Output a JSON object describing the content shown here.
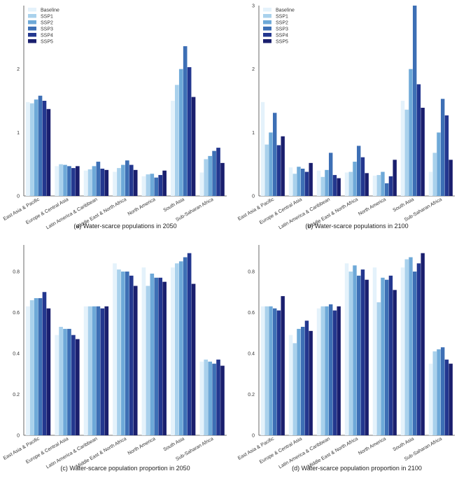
{
  "colors": [
    "#e4f2fb",
    "#a9d1ec",
    "#6ea9d8",
    "#3d6fb5",
    "#23378f",
    "#1a1f6e"
  ],
  "chart_data": [
    {
      "type": "bar",
      "caption": "(a) Water-scarce populations in 2050",
      "categories": [
        "East Asia & Pacific",
        "Europe & Central Asia",
        "Latin America & Caribbean",
        "Middle East & North Africa",
        "North America",
        "South Asia",
        "Sub-Saharan Africa"
      ],
      "ylim": [
        0,
        3.0
      ],
      "yticks": [
        0,
        1,
        2
      ],
      "series": [
        {
          "name": "Baseline",
          "values": [
            1.48,
            0.47,
            0.4,
            0.38,
            0.31,
            1.5,
            0.37
          ]
        },
        {
          "name": "SSP1",
          "values": [
            1.46,
            0.5,
            0.42,
            0.44,
            0.34,
            1.75,
            0.58
          ]
        },
        {
          "name": "SSP2",
          "values": [
            1.52,
            0.49,
            0.47,
            0.49,
            0.35,
            2.0,
            0.63
          ]
        },
        {
          "name": "SSP3",
          "values": [
            1.58,
            0.47,
            0.54,
            0.56,
            0.29,
            2.36,
            0.71
          ]
        },
        {
          "name": "SSP4",
          "values": [
            1.5,
            0.44,
            0.43,
            0.49,
            0.33,
            2.03,
            0.76
          ]
        },
        {
          "name": "SSP5",
          "values": [
            1.37,
            0.47,
            0.41,
            0.41,
            0.4,
            1.56,
            0.52
          ]
        }
      ],
      "legend": "top-left"
    },
    {
      "type": "bar",
      "caption": "(b) Water-scarce populations in 2100",
      "categories": [
        "East Asia & Pacific",
        "Europe & Central Asia",
        "Latin America & Caribbean",
        "Middle East & North Africa",
        "North America",
        "South Asia",
        "Sub-Saharan Africa"
      ],
      "ylim": [
        0,
        3.0
      ],
      "yticks": [
        0,
        1,
        2,
        3
      ],
      "series": [
        {
          "name": "Baseline",
          "values": [
            1.48,
            0.45,
            0.4,
            0.37,
            0.32,
            1.5,
            0.38
          ]
        },
        {
          "name": "SSP1",
          "values": [
            0.81,
            0.35,
            0.3,
            0.38,
            0.33,
            1.36,
            0.68
          ]
        },
        {
          "name": "SSP2",
          "values": [
            1.0,
            0.46,
            0.41,
            0.54,
            0.38,
            2.0,
            1.0
          ]
        },
        {
          "name": "SSP3",
          "values": [
            1.31,
            0.43,
            0.68,
            0.79,
            0.2,
            3.0,
            1.53
          ]
        },
        {
          "name": "SSP4",
          "values": [
            0.8,
            0.38,
            0.33,
            0.61,
            0.31,
            1.76,
            1.27
          ]
        },
        {
          "name": "SSP5",
          "values": [
            0.94,
            0.52,
            0.28,
            0.36,
            0.57,
            1.39,
            0.57
          ]
        }
      ],
      "legend": "top-left"
    },
    {
      "type": "bar",
      "caption": "(c) Water-scarce population proportion in 2050",
      "categories": [
        "East Asia & Pacific",
        "Europe & Central Asia",
        "Latin America & Caribbean",
        "Middle East & North Africa",
        "North America",
        "South Asia",
        "Sub-Saharan Africa"
      ],
      "ylim": [
        0,
        0.93
      ],
      "yticks": [
        0,
        0.2,
        0.4,
        0.6,
        0.8
      ],
      "series": [
        {
          "name": "Baseline",
          "values": [
            0.63,
            0.49,
            0.63,
            0.84,
            0.82,
            0.82,
            0.36
          ]
        },
        {
          "name": "SSP1",
          "values": [
            0.66,
            0.53,
            0.63,
            0.81,
            0.73,
            0.84,
            0.37
          ]
        },
        {
          "name": "SSP2",
          "values": [
            0.67,
            0.52,
            0.63,
            0.8,
            0.79,
            0.85,
            0.36
          ]
        },
        {
          "name": "SSP3",
          "values": [
            0.67,
            0.52,
            0.63,
            0.8,
            0.77,
            0.87,
            0.35
          ]
        },
        {
          "name": "SSP4",
          "values": [
            0.7,
            0.49,
            0.62,
            0.78,
            0.77,
            0.89,
            0.37
          ]
        },
        {
          "name": "SSP5",
          "values": [
            0.62,
            0.47,
            0.63,
            0.73,
            0.75,
            0.74,
            0.34
          ]
        }
      ]
    },
    {
      "type": "bar",
      "caption": "(d) Water-scarce population proportion in 2100",
      "categories": [
        "East Asia & Pacific",
        "Europe & Central Asia",
        "Latin America & Caribbean",
        "Middle East & North Africa",
        "North America",
        "South Asia",
        "Sub-Saharan Africa"
      ],
      "ylim": [
        0,
        0.93
      ],
      "yticks": [
        0,
        0.2,
        0.4,
        0.6,
        0.8
      ],
      "series": [
        {
          "name": "Baseline",
          "values": [
            0.63,
            0.49,
            0.62,
            0.84,
            0.82,
            0.82,
            0.35
          ]
        },
        {
          "name": "SSP1",
          "values": [
            0.63,
            0.45,
            0.63,
            0.8,
            0.65,
            0.86,
            0.41
          ]
        },
        {
          "name": "SSP2",
          "values": [
            0.63,
            0.52,
            0.63,
            0.83,
            0.77,
            0.87,
            0.42
          ]
        },
        {
          "name": "SSP3",
          "values": [
            0.62,
            0.53,
            0.64,
            0.78,
            0.76,
            0.8,
            0.43
          ]
        },
        {
          "name": "SSP4",
          "values": [
            0.61,
            0.56,
            0.61,
            0.81,
            0.78,
            0.84,
            0.37
          ]
        },
        {
          "name": "SSP5",
          "values": [
            0.68,
            0.51,
            0.63,
            0.76,
            0.71,
            0.89,
            0.35
          ]
        }
      ]
    }
  ]
}
